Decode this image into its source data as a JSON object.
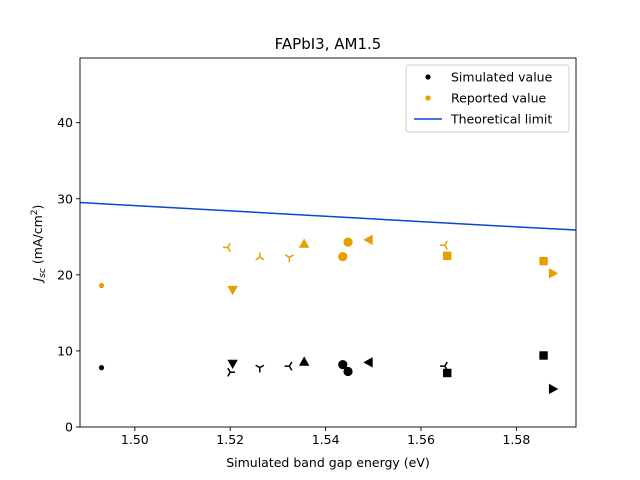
{
  "chart_data": {
    "type": "scatter",
    "title": "FAPbI3, AM1.5",
    "xlabel": "Simulated band gap energy (eV)",
    "ylabel": {
      "main": "J",
      "sub": "sc",
      "unit_prefix": " (mA/cm",
      "sup": "2",
      "unit_suffix": ")"
    },
    "xlim": [
      1.4885,
      1.5925
    ],
    "ylim": [
      0,
      48.5
    ],
    "xticks": [
      1.5,
      1.52,
      1.54,
      1.56,
      1.58
    ],
    "xtick_labels": [
      "1.50",
      "1.52",
      "1.54",
      "1.56",
      "1.58"
    ],
    "yticks": [
      0,
      10,
      20,
      30,
      40
    ],
    "ytick_labels": [
      "0",
      "10",
      "20",
      "30",
      "40"
    ],
    "grid": false,
    "legend_position": "top-right",
    "legend": [
      {
        "label": "Simulated value",
        "kind": "dot",
        "color": "#000000"
      },
      {
        "label": "Reported value",
        "kind": "dot",
        "color": "#e69f00"
      },
      {
        "label": "Theoretical limit",
        "kind": "line",
        "color": "#0a47d1"
      }
    ],
    "series": [
      {
        "name": "Simulated value",
        "color": "#000000",
        "points": [
          {
            "x": 1.493,
            "y": 7.8,
            "marker": "point"
          },
          {
            "x": 1.52,
            "y": 7.2,
            "marker": "tri_right"
          },
          {
            "x": 1.5205,
            "y": 8.3,
            "marker": "triangle_down"
          },
          {
            "x": 1.5262,
            "y": 7.8,
            "marker": "tri_down"
          },
          {
            "x": 1.5324,
            "y": 8.0,
            "marker": "tri_left"
          },
          {
            "x": 1.5355,
            "y": 8.6,
            "marker": "triangle_up"
          },
          {
            "x": 1.5436,
            "y": 8.2,
            "marker": "circle"
          },
          {
            "x": 1.5447,
            "y": 7.3,
            "marker": "circle"
          },
          {
            "x": 1.549,
            "y": 8.5,
            "marker": "triangle_left"
          },
          {
            "x": 1.565,
            "y": 8.0,
            "marker": "tri_left"
          },
          {
            "x": 1.5655,
            "y": 7.1,
            "marker": "square"
          },
          {
            "x": 1.5857,
            "y": 9.4,
            "marker": "square"
          },
          {
            "x": 1.5877,
            "y": 5.0,
            "marker": "triangle_right"
          }
        ]
      },
      {
        "name": "Reported value",
        "color": "#e69f00",
        "points": [
          {
            "x": 1.493,
            "y": 18.6,
            "marker": "point"
          },
          {
            "x": 1.5195,
            "y": 23.6,
            "marker": "tri_left"
          },
          {
            "x": 1.5205,
            "y": 18.0,
            "marker": "triangle_down"
          },
          {
            "x": 1.5262,
            "y": 22.3,
            "marker": "tri_up"
          },
          {
            "x": 1.5324,
            "y": 22.3,
            "marker": "tri_down"
          },
          {
            "x": 1.5355,
            "y": 24.1,
            "marker": "triangle_up"
          },
          {
            "x": 1.5436,
            "y": 22.4,
            "marker": "circle"
          },
          {
            "x": 1.5447,
            "y": 24.3,
            "marker": "circle"
          },
          {
            "x": 1.549,
            "y": 24.6,
            "marker": "triangle_left"
          },
          {
            "x": 1.565,
            "y": 23.9,
            "marker": "tri_left"
          },
          {
            "x": 1.5655,
            "y": 22.5,
            "marker": "square"
          },
          {
            "x": 1.5857,
            "y": 21.8,
            "marker": "square"
          },
          {
            "x": 1.5877,
            "y": 20.2,
            "marker": "triangle_right"
          }
        ]
      },
      {
        "name": "Theoretical limit",
        "color": "#0a47d1",
        "type": "line",
        "x": [
          1.4885,
          1.5,
          1.52,
          1.54,
          1.56,
          1.58,
          1.5925
        ],
        "y": [
          29.5,
          29.1,
          28.4,
          27.7,
          27.0,
          26.3,
          25.9
        ]
      }
    ]
  }
}
